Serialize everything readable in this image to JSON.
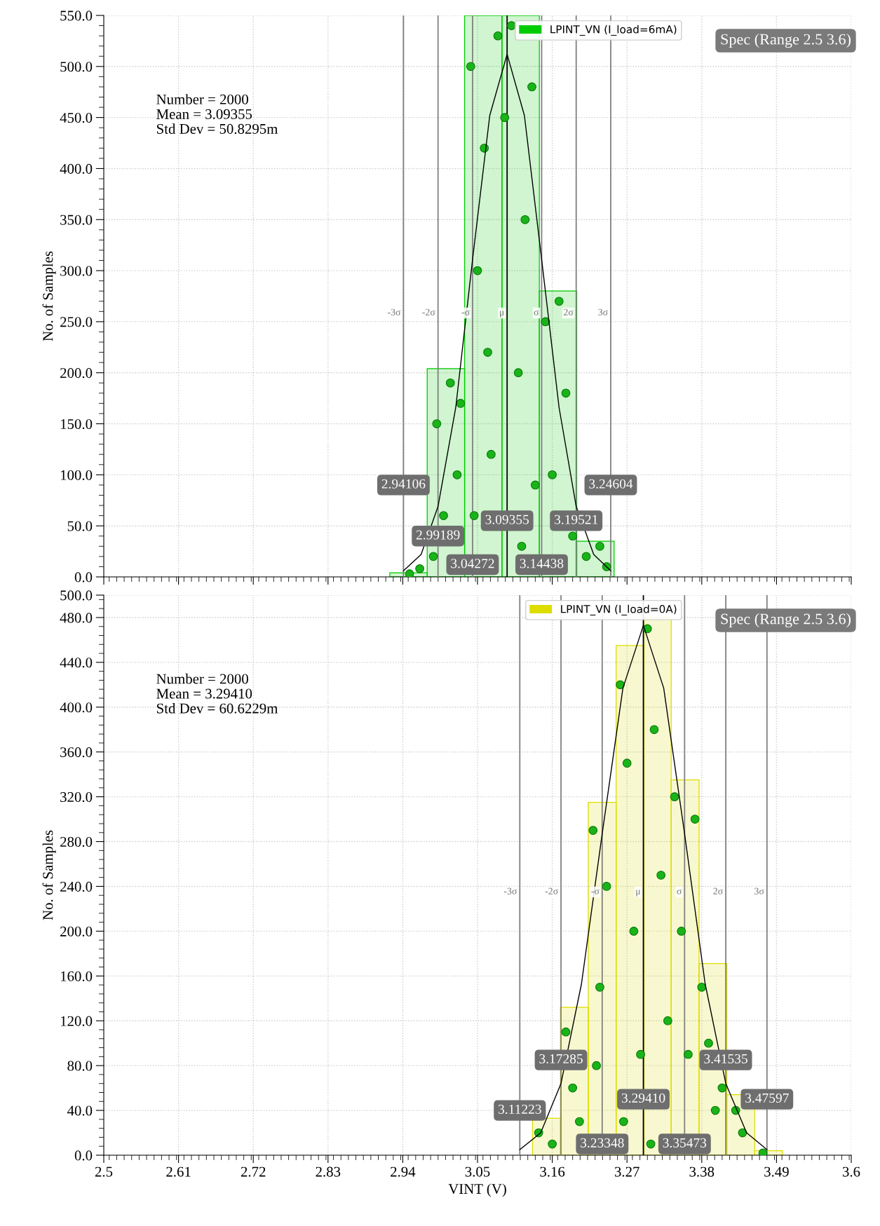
{
  "chart_data": [
    {
      "type": "histogram",
      "ylabel": "No. of Samples",
      "tick_labels": "y",
      "grid": true,
      "legend": "top right",
      "xlim": [
        2.5,
        3.6
      ],
      "xticks": [
        2.5,
        2.61,
        2.72,
        2.83,
        2.94,
        3.05,
        3.16,
        3.27,
        3.38,
        3.49,
        3.6
      ],
      "ylim": [
        0,
        550
      ],
      "yticks": [
        {
          "value": 0,
          "label": "0.0"
        },
        {
          "value": 50,
          "label": "50.0"
        },
        {
          "value": 100,
          "label": "100.0"
        },
        {
          "value": 150,
          "label": "150.0"
        },
        {
          "value": 200,
          "label": "200.0"
        },
        {
          "value": 250,
          "label": "250.0"
        },
        {
          "value": 300,
          "label": "300.0"
        },
        {
          "value": 350,
          "label": "350.0"
        },
        {
          "value": 400,
          "label": "400.0"
        },
        {
          "value": 450,
          "label": "450.0"
        },
        {
          "value": 500,
          "label": "500.0"
        },
        {
          "value": 550,
          "label": "550.0"
        }
      ],
      "series": [
        {
          "name": "LPINT_VN (I_load=6mA)",
          "color": "#00cc00",
          "bins": [
            2.921,
            2.976,
            3.031,
            3.086,
            3.141,
            3.196,
            3.251
          ],
          "values": [
            4,
            204,
            550,
            550,
            280,
            35
          ]
        },
        {
          "type": "scatter",
          "color": "#19b419",
          "x": [
            2.95,
            2.965,
            2.99,
            3.0,
            3.01,
            3.02,
            2.985,
            3.025,
            3.04,
            3.05,
            3.06,
            3.07,
            3.08,
            3.045,
            3.065,
            3.09,
            3.1,
            3.11,
            3.12,
            3.13,
            3.135,
            3.115,
            3.15,
            3.16,
            3.17,
            3.18,
            3.19,
            3.21,
            3.23,
            3.24
          ],
          "values": [
            3,
            8,
            150,
            60,
            190,
            100,
            20,
            170,
            500,
            300,
            420,
            120,
            530,
            60,
            220,
            450,
            540,
            200,
            350,
            480,
            90,
            30,
            250,
            100,
            270,
            180,
            40,
            20,
            30,
            10
          ]
        },
        {
          "type": "line",
          "color": "#000000",
          "x": [
            2.94106,
            2.967,
            2.99189,
            3.018,
            3.04272,
            3.068,
            3.09355,
            3.119,
            3.14438,
            3.17,
            3.19521,
            3.221,
            3.24604
          ],
          "values": [
            6,
            22,
            69,
            166,
            311,
            452,
            512,
            452,
            311,
            166,
            69,
            22,
            6
          ]
        }
      ],
      "ref_lines": [
        {
          "axis": "x",
          "value": 2.94106,
          "label": "-3σ",
          "color": "#808080"
        },
        {
          "axis": "x",
          "value": 2.99189,
          "label": "-2σ",
          "color": "#808080"
        },
        {
          "axis": "x",
          "value": 3.04272,
          "label": "-σ",
          "color": "#808080"
        },
        {
          "axis": "x",
          "value": 3.09355,
          "label": "μ",
          "color": "#000000"
        },
        {
          "axis": "x",
          "value": 3.14438,
          "label": "σ",
          "color": "#808080"
        },
        {
          "axis": "x",
          "value": 3.19521,
          "label": "2σ",
          "color": "#808080"
        },
        {
          "axis": "x",
          "value": 3.24604,
          "label": "3σ",
          "color": "#808080"
        }
      ],
      "annotations": [
        "Number = 2000\nMean = 3.09355\nStd Dev = 50.8295m",
        "Spec (Range 2.5 3.6)",
        {
          "text": "2.94106",
          "x": 2.94106,
          "y": 90
        },
        {
          "text": "2.99189",
          "x": 2.99189,
          "y": 40
        },
        {
          "text": "3.04272",
          "x": 3.04272,
          "y": 12
        },
        {
          "text": "3.09355",
          "x": 3.09355,
          "y": 55
        },
        {
          "text": "3.14438",
          "x": 3.14438,
          "y": 12
        },
        {
          "text": "3.19521",
          "x": 3.19521,
          "y": 55
        },
        {
          "text": "3.24604",
          "x": 3.24604,
          "y": 90
        }
      ]
    },
    {
      "type": "histogram",
      "xlabel": "VINT (V)",
      "ylabel": "No. of Samples",
      "grid": true,
      "legend": "top right",
      "xlim": [
        2.5,
        3.6
      ],
      "xticks": [
        2.5,
        2.61,
        2.72,
        2.83,
        2.94,
        3.05,
        3.16,
        3.27,
        3.38,
        3.49,
        3.6
      ],
      "ylim": [
        0,
        500
      ],
      "yticks": [
        {
          "value": 0,
          "label": "0.0"
        },
        {
          "value": 40,
          "label": "40.0"
        },
        {
          "value": 80,
          "label": "80.0"
        },
        {
          "value": 120,
          "label": "120.0"
        },
        {
          "value": 160,
          "label": "160.0"
        },
        {
          "value": 200,
          "label": "200.0"
        },
        {
          "value": 240,
          "label": "240.0"
        },
        {
          "value": 280,
          "label": "280.0"
        },
        {
          "value": 320,
          "label": "320.0"
        },
        {
          "value": 360,
          "label": "360.0"
        },
        {
          "value": 400,
          "label": "400.0"
        },
        {
          "value": 440,
          "label": "440.0"
        },
        {
          "value": 480,
          "label": "480.0"
        },
        {
          "value": 500,
          "label": "500.0"
        }
      ],
      "series": [
        {
          "name": "LPINT_VN (I_load=0A)",
          "color": "#dddd00",
          "bins": [
            3.131,
            3.172,
            3.213,
            3.254,
            3.295,
            3.335,
            3.376,
            3.417,
            3.458,
            3.499
          ],
          "values": [
            33,
            132,
            315,
            455,
            480,
            335,
            171,
            54,
            4
          ]
        },
        {
          "type": "scatter",
          "color": "#19b419",
          "x": [
            3.14,
            3.16,
            3.18,
            3.19,
            3.2,
            3.22,
            3.23,
            3.24,
            3.26,
            3.27,
            3.28,
            3.29,
            3.3,
            3.31,
            3.32,
            3.33,
            3.34,
            3.35,
            3.36,
            3.37,
            3.38,
            3.39,
            3.4,
            3.41,
            3.43,
            3.44,
            3.47,
            3.225,
            3.265,
            3.305
          ],
          "values": [
            20,
            10,
            110,
            60,
            30,
            290,
            150,
            240,
            420,
            350,
            200,
            90,
            470,
            380,
            250,
            120,
            320,
            200,
            90,
            300,
            150,
            100,
            40,
            60,
            40,
            20,
            2,
            80,
            30,
            10
          ]
        },
        {
          "type": "line",
          "color": "#000000",
          "x": [
            3.11223,
            3.143,
            3.17285,
            3.203,
            3.23348,
            3.264,
            3.2941,
            3.324,
            3.35473,
            3.385,
            3.41535,
            3.446,
            3.47597
          ],
          "values": [
            5,
            20,
            64,
            153,
            287,
            417,
            473,
            417,
            287,
            153,
            64,
            20,
            5
          ]
        }
      ],
      "ref_lines": [
        {
          "axis": "x",
          "value": 3.11223,
          "label": "-3σ",
          "color": "#808080"
        },
        {
          "axis": "x",
          "value": 3.17285,
          "label": "-2σ",
          "color": "#808080"
        },
        {
          "axis": "x",
          "value": 3.23348,
          "label": "-σ",
          "color": "#808080"
        },
        {
          "axis": "x",
          "value": 3.2941,
          "label": "μ",
          "color": "#000000"
        },
        {
          "axis": "x",
          "value": 3.35473,
          "label": "σ",
          "color": "#808080"
        },
        {
          "axis": "x",
          "value": 3.41535,
          "label": "2σ",
          "color": "#808080"
        },
        {
          "axis": "x",
          "value": 3.47597,
          "label": "3σ",
          "color": "#808080"
        }
      ],
      "annotations": [
        "Number = 2000\nMean = 3.29410\nStd Dev = 60.6229m",
        "Spec (Range 2.5 3.6)",
        {
          "text": "3.11223",
          "x": 3.11223,
          "y": 40
        },
        {
          "text": "3.17285",
          "x": 3.17285,
          "y": 85
        },
        {
          "text": "3.23348",
          "x": 3.23348,
          "y": 10
        },
        {
          "text": "3.29410",
          "x": 3.2941,
          "y": 50
        },
        {
          "text": "3.35473",
          "x": 3.35473,
          "y": 10
        },
        {
          "text": "3.41535",
          "x": 3.41535,
          "y": 85
        },
        {
          "text": "3.47597",
          "x": 3.47597,
          "y": 50
        }
      ]
    }
  ]
}
